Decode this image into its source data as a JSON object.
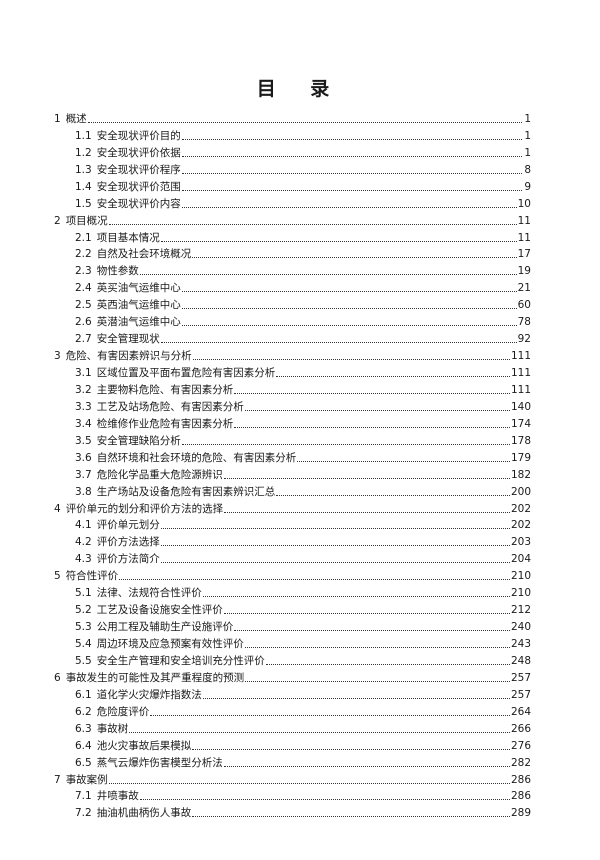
{
  "title": "目  录",
  "toc": [
    {
      "num": "1",
      "text": "概述",
      "page": "1",
      "level": 1
    },
    {
      "num": "1.1",
      "text": "安全现状评价目的",
      "page": "1",
      "level": 2
    },
    {
      "num": "1.2",
      "text": "安全现状评价依据",
      "page": "1",
      "level": 2
    },
    {
      "num": "1.3",
      "text": "安全现状评价程序",
      "page": "8",
      "level": 2
    },
    {
      "num": "1.4",
      "text": "安全现状评价范围",
      "page": "9",
      "level": 2
    },
    {
      "num": "1.5",
      "text": "安全现状评价内容",
      "page": "10",
      "level": 2
    },
    {
      "num": "2",
      "text": "项目概况",
      "page": "11",
      "level": 1
    },
    {
      "num": "2.1",
      "text": "项目基本情况",
      "page": "11",
      "level": 2
    },
    {
      "num": "2.2",
      "text": "自然及社会环境概况",
      "page": "17",
      "level": 2
    },
    {
      "num": "2.3",
      "text": "物性参数",
      "page": "19",
      "level": 2
    },
    {
      "num": "2.4",
      "text": "英买油气运维中心",
      "page": "21",
      "level": 2
    },
    {
      "num": "2.5",
      "text": "英西油气运维中心",
      "page": "60",
      "level": 2
    },
    {
      "num": "2.6",
      "text": "英潜油气运维中心",
      "page": "78",
      "level": 2
    },
    {
      "num": "2.7",
      "text": "安全管理现状",
      "page": "92",
      "level": 2
    },
    {
      "num": "3",
      "text": "危险、有害因素辨识与分析",
      "page": "111",
      "level": 1
    },
    {
      "num": "3.1",
      "text": "区域位置及平面布置危险有害因素分析",
      "page": "111",
      "level": 2
    },
    {
      "num": "3.2",
      "text": "主要物料危险、有害因素分析",
      "page": "111",
      "level": 2
    },
    {
      "num": "3.3",
      "text": "工艺及站场危险、有害因素分析",
      "page": "140",
      "level": 2
    },
    {
      "num": "3.4",
      "text": "检维修作业危险有害因素分析",
      "page": "174",
      "level": 2
    },
    {
      "num": "3.5",
      "text": "安全管理缺陷分析",
      "page": "178",
      "level": 2
    },
    {
      "num": "3.6",
      "text": "自然环境和社会环境的危险、有害因素分析",
      "page": "179",
      "level": 2
    },
    {
      "num": "3.7",
      "text": "危险化学品重大危险源辨识",
      "page": "182",
      "level": 2
    },
    {
      "num": "3.8",
      "text": "生产场站及设备危险有害因素辨识汇总",
      "page": "200",
      "level": 2
    },
    {
      "num": "4",
      "text": "评价单元的划分和评价方法的选择",
      "page": "202",
      "level": 1
    },
    {
      "num": "4.1",
      "text": "评价单元划分",
      "page": "202",
      "level": 2
    },
    {
      "num": "4.2",
      "text": "评价方法选择",
      "page": "203",
      "level": 2
    },
    {
      "num": "4.3",
      "text": "评价方法简介",
      "page": "204",
      "level": 2
    },
    {
      "num": "5",
      "text": "符合性评价",
      "page": "210",
      "level": 1
    },
    {
      "num": "5.1",
      "text": "法律、法规符合性评价",
      "page": "210",
      "level": 2
    },
    {
      "num": "5.2",
      "text": "工艺及设备设施安全性评价",
      "page": "212",
      "level": 2
    },
    {
      "num": "5.3",
      "text": "公用工程及辅助生产设施评价",
      "page": "240",
      "level": 2
    },
    {
      "num": "5.4",
      "text": "周边环境及应急预案有效性评价",
      "page": "243",
      "level": 2
    },
    {
      "num": "5.5",
      "text": "安全生产管理和安全培训充分性评价",
      "page": "248",
      "level": 2
    },
    {
      "num": "6",
      "text": "事故发生的可能性及其严重程度的预测",
      "page": "257",
      "level": 1
    },
    {
      "num": "6.1",
      "text": "道化学火灾爆炸指数法",
      "page": "257",
      "level": 2
    },
    {
      "num": "6.2",
      "text": "危险度评价",
      "page": "264",
      "level": 2
    },
    {
      "num": "6.3",
      "text": "事故树",
      "page": "266",
      "level": 2
    },
    {
      "num": "6.4",
      "text": "池火灾事故后果模拟",
      "page": "276",
      "level": 2
    },
    {
      "num": "6.5",
      "text": "蒸气云爆炸伤害模型分析法",
      "page": "282",
      "level": 2
    },
    {
      "num": "7",
      "text": "事故案例",
      "page": "286",
      "level": 1
    },
    {
      "num": "7.1",
      "text": "井喷事故",
      "page": "286",
      "level": 2
    },
    {
      "num": "7.2",
      "text": "抽油机曲柄伤人事故",
      "page": "289",
      "level": 2
    }
  ]
}
